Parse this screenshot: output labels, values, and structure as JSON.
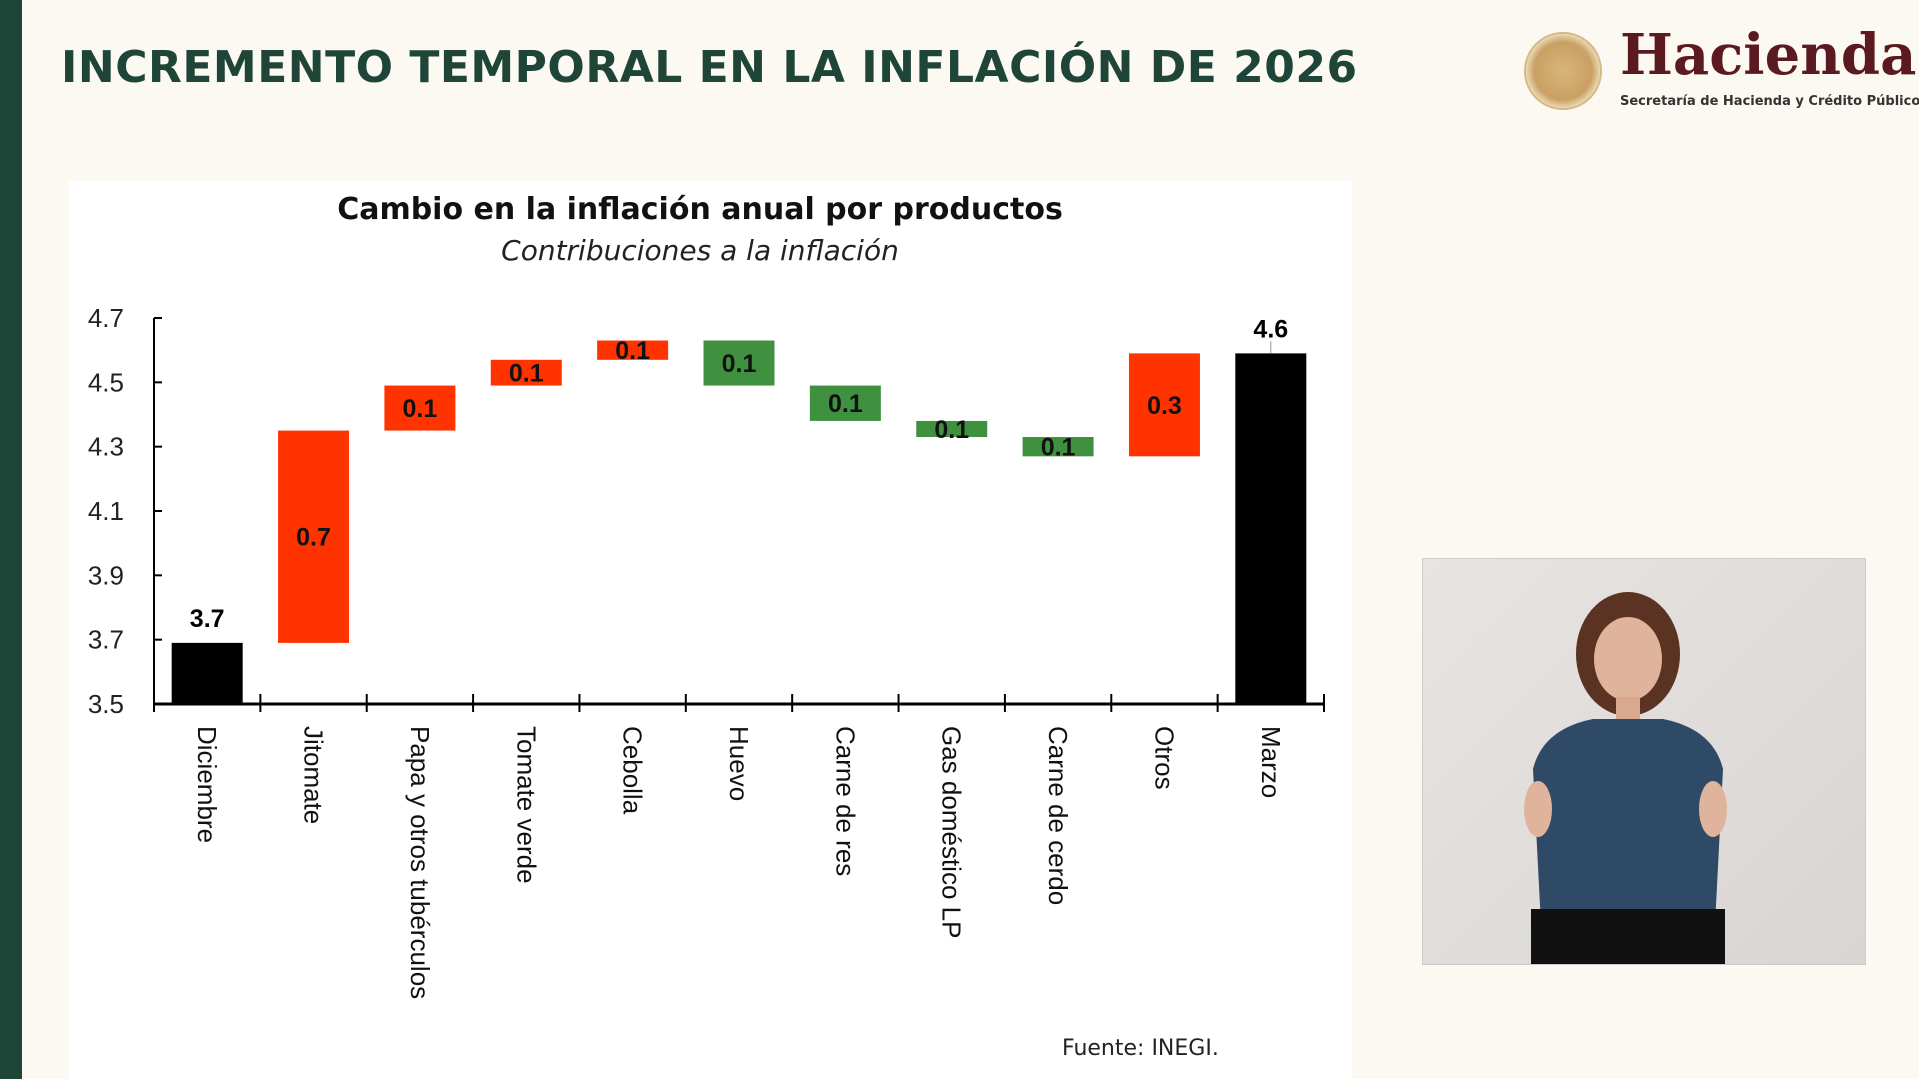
{
  "header": {
    "title": "INCREMENTO TEMPORAL EN LA INFLACIÓN DE 2026"
  },
  "logo": {
    "brand": "Hacienda",
    "subtitle": "Secretaría de Hacienda y Crédito Público",
    "seal_text": "ESTADOS UNIDOS MEXICANOS"
  },
  "video": {
    "label": "sign-language-interpreter"
  },
  "source": "Fuente: INEGI.",
  "chart_data": {
    "type": "waterfall",
    "title": "Cambio en la inflación anual por productos",
    "subtitle": "Contribuciones a  la inflación",
    "xlabel": "",
    "ylabel": "",
    "ylim": [
      3.5,
      4.7
    ],
    "yticks": [
      "3.5",
      "3.7",
      "3.9",
      "4.1",
      "4.3",
      "4.5",
      "4.7"
    ],
    "grid": false,
    "colors": {
      "total": "#000000",
      "increase": "#ff3300",
      "decrease": "#3f9140"
    },
    "bars": [
      {
        "category": "Diciembre",
        "kind": "total",
        "start": 3.5,
        "end": 3.69,
        "label": "3.7"
      },
      {
        "category": "Jitomate",
        "kind": "increase",
        "start": 3.69,
        "end": 4.35,
        "label": "0.7"
      },
      {
        "category": "Papa y otros tubérculos",
        "kind": "increase",
        "start": 4.35,
        "end": 4.49,
        "label": "0.1"
      },
      {
        "category": "Tomate verde",
        "kind": "increase",
        "start": 4.49,
        "end": 4.57,
        "label": "0.1"
      },
      {
        "category": "Cebolla",
        "kind": "increase",
        "start": 4.57,
        "end": 4.63,
        "label": "0.1"
      },
      {
        "category": "Huevo",
        "kind": "decrease",
        "start": 4.63,
        "end": 4.49,
        "label": "0.1"
      },
      {
        "category": "Carne de res",
        "kind": "decrease",
        "start": 4.49,
        "end": 4.38,
        "label": "0.1"
      },
      {
        "category": "Gas doméstico LP",
        "kind": "decrease",
        "start": 4.38,
        "end": 4.33,
        "label": "0.1"
      },
      {
        "category": "Carne de cerdo",
        "kind": "decrease",
        "start": 4.33,
        "end": 4.27,
        "label": "0.1"
      },
      {
        "category": "Otros",
        "kind": "increase",
        "start": 4.27,
        "end": 4.59,
        "label": "0.3"
      },
      {
        "category": "Marzo",
        "kind": "total",
        "start": 3.5,
        "end": 4.59,
        "label": "4.6"
      }
    ]
  }
}
